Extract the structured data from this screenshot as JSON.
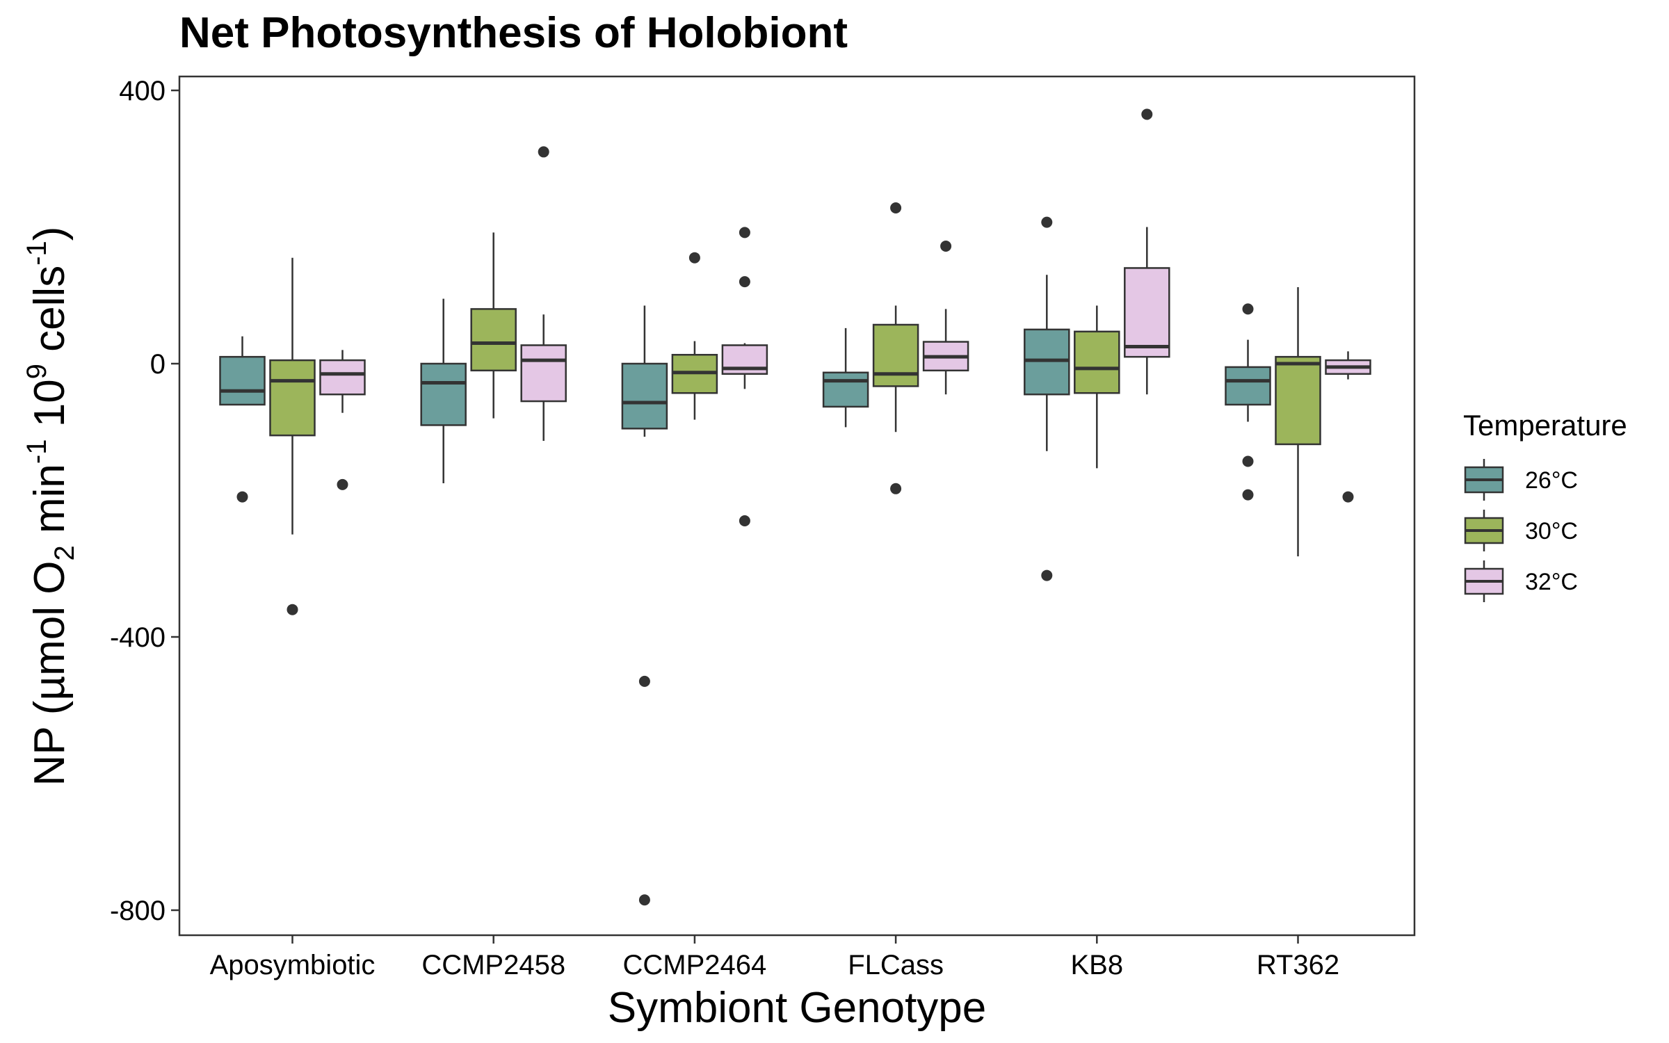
{
  "chart_data": {
    "type": "boxplot",
    "title": "Net Photosynthesis of Holobiont",
    "xlabel": "Symbiont Genotype",
    "ylabel": {
      "prefix": "NP (µmol O",
      "o2_sub": "2",
      "min": " min",
      "min_sup": "-1",
      "ten": " 10",
      "ten_sup": "9",
      "cells": " cells",
      "cells_sup": "-1",
      "suffix": ")"
    },
    "ylim": [
      -820,
      420
    ],
    "yticks": [
      400,
      0,
      -400,
      -800
    ],
    "ytick_labels": [
      "400",
      "0",
      "-400",
      "-800"
    ],
    "grid": false,
    "legend": {
      "title": "Temperature",
      "placement": "right",
      "entries": [
        "26°C",
        "30°C",
        "32°C"
      ]
    },
    "categories": [
      "Aposymbiotic",
      "CCMP2458",
      "CCMP2464",
      "FLCass",
      "KB8",
      "RT362"
    ],
    "series": [
      {
        "name": "26°C",
        "color": "#6b9e9c",
        "boxes": [
          {
            "q1": -60,
            "median": -40,
            "q3": 10,
            "whisker_low": -60,
            "whisker_high": 40,
            "outliers": [
              -195
            ]
          },
          {
            "q1": -90,
            "median": -28,
            "q3": 0,
            "whisker_low": -175,
            "whisker_high": 95,
            "outliers": []
          },
          {
            "q1": -95,
            "median": -57,
            "q3": 0,
            "whisker_low": -107,
            "whisker_high": 85,
            "outliers": [
              -465,
              -785
            ]
          },
          {
            "q1": -63,
            "median": -25,
            "q3": -13,
            "whisker_low": -93,
            "whisker_high": 52,
            "outliers": []
          },
          {
            "q1": -45,
            "median": 5,
            "q3": 50,
            "whisker_low": -128,
            "whisker_high": 130,
            "outliers": [
              207,
              -310
            ]
          },
          {
            "q1": -60,
            "median": -25,
            "q3": -5,
            "whisker_low": -85,
            "whisker_high": 35,
            "outliers": [
              80,
              -143,
              -192
            ]
          }
        ]
      },
      {
        "name": "30°C",
        "color": "#9cb55b",
        "boxes": [
          {
            "q1": -105,
            "median": -25,
            "q3": 5,
            "whisker_low": -250,
            "whisker_high": 155,
            "outliers": [
              -360
            ]
          },
          {
            "q1": -10,
            "median": 30,
            "q3": 80,
            "whisker_low": -80,
            "whisker_high": 192,
            "outliers": []
          },
          {
            "q1": -43,
            "median": -13,
            "q3": 13,
            "whisker_low": -82,
            "whisker_high": 33,
            "outliers": [
              155
            ]
          },
          {
            "q1": -33,
            "median": -15,
            "q3": 57,
            "whisker_low": -100,
            "whisker_high": 85,
            "outliers": [
              228,
              -183
            ]
          },
          {
            "q1": -43,
            "median": -7,
            "q3": 47,
            "whisker_low": -153,
            "whisker_high": 85,
            "outliers": []
          },
          {
            "q1": -118,
            "median": 0,
            "q3": 10,
            "whisker_low": -282,
            "whisker_high": 112,
            "outliers": []
          }
        ]
      },
      {
        "name": "32°C",
        "color": "#e4c7e5",
        "boxes": [
          {
            "q1": -45,
            "median": -15,
            "q3": 5,
            "whisker_low": -72,
            "whisker_high": 20,
            "outliers": [
              -177
            ]
          },
          {
            "q1": -55,
            "median": 5,
            "q3": 27,
            "whisker_low": -113,
            "whisker_high": 72,
            "outliers": [
              310
            ]
          },
          {
            "q1": -15,
            "median": -7,
            "q3": 27,
            "whisker_low": -37,
            "whisker_high": 30,
            "outliers": [
              192,
              120,
              -230
            ]
          },
          {
            "q1": -10,
            "median": 10,
            "q3": 32,
            "whisker_low": -45,
            "whisker_high": 80,
            "outliers": [
              172
            ]
          },
          {
            "q1": 10,
            "median": 25,
            "q3": 140,
            "whisker_low": -45,
            "whisker_high": 200,
            "outliers": [
              365
            ]
          },
          {
            "q1": -15,
            "median": -5,
            "q3": 5,
            "whisker_low": -23,
            "whisker_high": 18,
            "outliers": [
              -195
            ]
          }
        ]
      }
    ]
  }
}
